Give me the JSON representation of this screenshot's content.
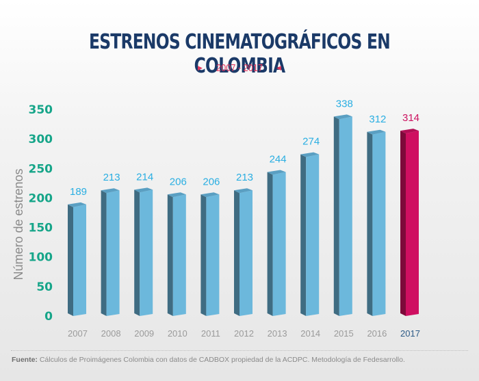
{
  "header": {
    "title": "ESTRENOS CINEMATOGRÁFICOS EN COLOMBIA",
    "subtitle": "2007 - 2017",
    "subtitle_left_icon": "triangle-right-icon",
    "subtitle_right_icon": "triangle-left-icon"
  },
  "chart_data": {
    "type": "bar",
    "title": "ESTRENOS CINEMATOGRÁFICOS EN COLOMBIA",
    "subtitle": "2007 - 2017",
    "xlabel": "",
    "ylabel": "Número de estrenos",
    "categories": [
      "2007",
      "2008",
      "2009",
      "2010",
      "2011",
      "2012",
      "2013",
      "2014",
      "2015",
      "2016",
      "2017"
    ],
    "values": [
      189,
      213,
      214,
      206,
      206,
      213,
      244,
      274,
      338,
      312,
      314
    ],
    "data_labels": [
      "189",
      "213",
      "214",
      "206",
      "206",
      "213",
      "244",
      "274",
      "338",
      "312",
      "314"
    ],
    "ylim": [
      0,
      350
    ],
    "yticks": [
      0,
      50,
      100,
      150,
      200,
      250,
      300,
      350
    ],
    "ytick_labels": [
      "0",
      "50",
      "100",
      "150",
      "200",
      "250",
      "300",
      "350"
    ],
    "highlight_category": "2017",
    "grid": false,
    "legend": "none",
    "colors": {
      "bar_front": "#6cb8dc",
      "bar_side": "#3f6c82",
      "bar_top": "#5a9fc2",
      "highlight_front": "#cf0f61",
      "highlight_side": "#7d0a3a",
      "highlight_top": "#b10d54",
      "value_label": "#29aee2",
      "value_label_highlight": "#cc1260",
      "ytick": "#16a589"
    }
  },
  "footer": {
    "source_label": "Fuente:",
    "source_text": " Cálculos de Proimágenes Colombia con datos de CADBOX propiedad de la ACDPC. Metodología de Fedesarrollo."
  }
}
